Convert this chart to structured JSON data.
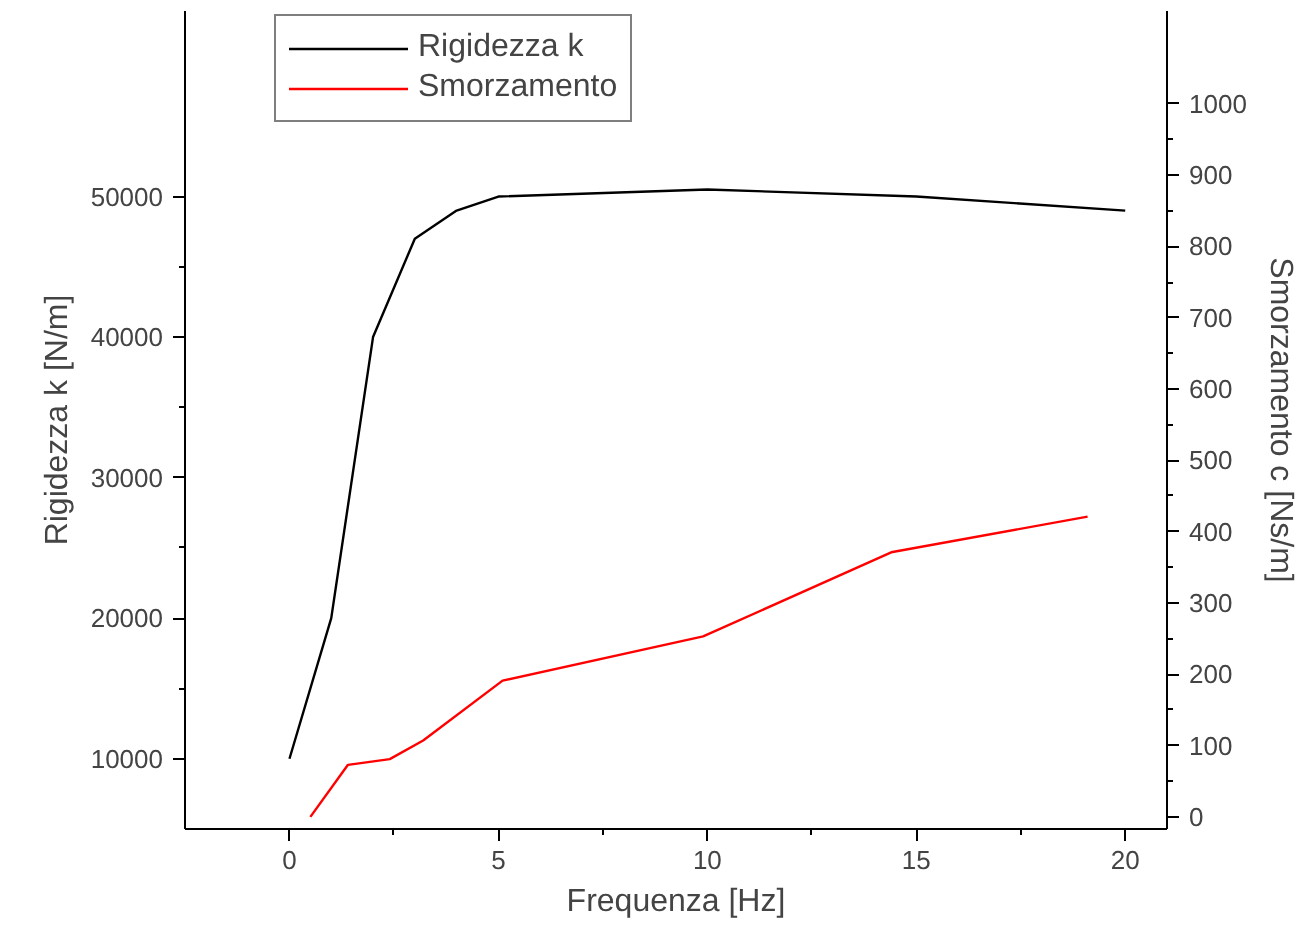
{
  "chart_data": {
    "type": "line",
    "xlabel": "Frequenza [Hz]",
    "ylabel": "Rigidezza k [N/m]",
    "y2label": "Smorzamento c [Ns/m]",
    "xlim": [
      -2.5,
      21
    ],
    "xticks": [
      0,
      5,
      10,
      15,
      20
    ],
    "ylim": [
      5000,
      63200
    ],
    "yticks": [
      10000,
      20000,
      30000,
      40000,
      50000
    ],
    "y2lim": [
      -17,
      1130
    ],
    "y2ticks": [
      0,
      100,
      200,
      300,
      400,
      500,
      600,
      700,
      800,
      900,
      1000
    ],
    "grid": false,
    "legend": "top",
    "marker": "none",
    "line_style": "solid",
    "series": [
      {
        "name": "Rigidezza k",
        "color": "#000000",
        "x": [
          0,
          1,
          2,
          3,
          4,
          5,
          10,
          15,
          20
        ],
        "values": [
          10000,
          20000,
          40000,
          47000,
          49000,
          50000,
          50500,
          50000,
          49000
        ]
      },
      {
        "name": "Smorzamento",
        "color": "#ff0000",
        "axis": "y2",
        "x": [
          0.5,
          1.4,
          2.4,
          3.2,
          5.1,
          9.9,
          14.4,
          19.1
        ],
        "values": [
          0,
          73,
          81,
          107,
          191,
          253,
          371,
          421
        ]
      }
    ]
  }
}
